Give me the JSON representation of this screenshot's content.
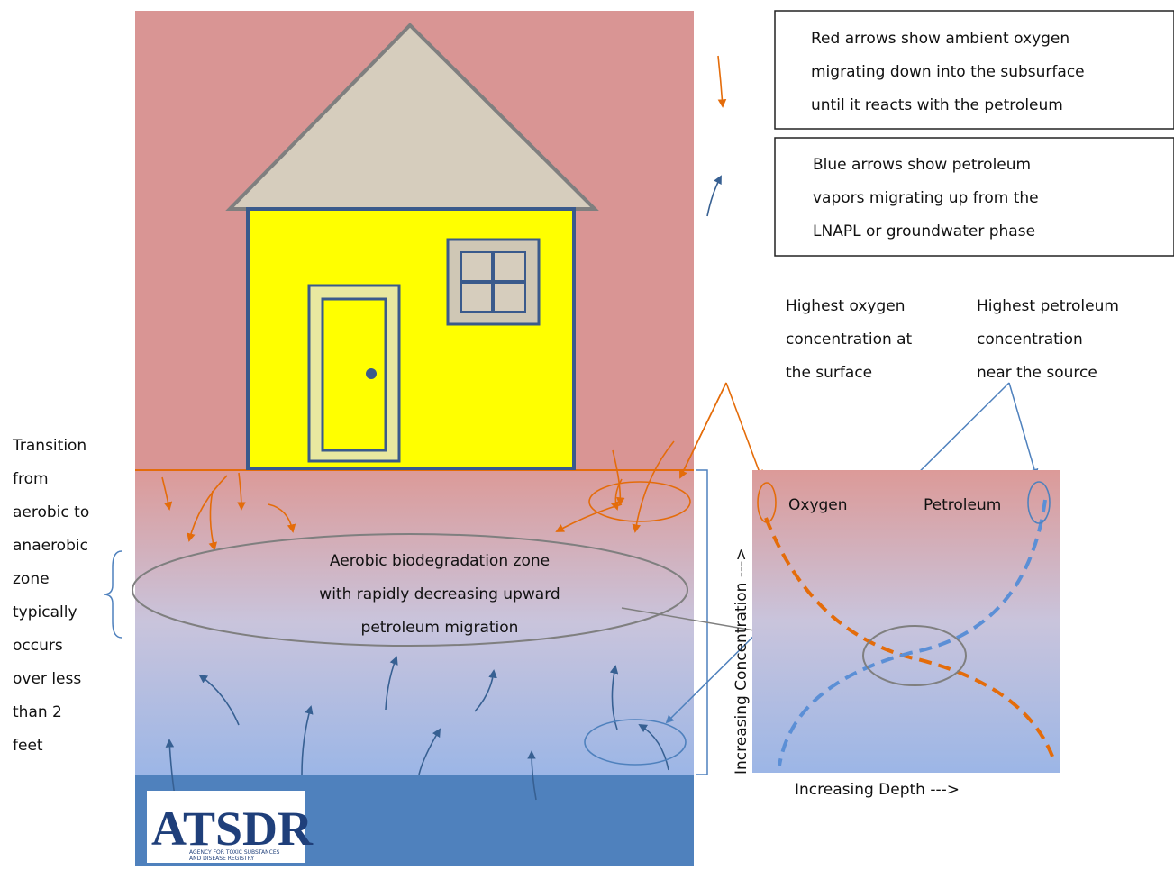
{
  "legend": {
    "red_arrows": [
      "Red arrows show ambient oxygen",
      "migrating down into the subsurface",
      "until it reacts with the petroleum"
    ],
    "blue_arrows": [
      "Blue arrows show petroleum",
      "vapors migrating up from the",
      "LNAPL or groundwater phase"
    ]
  },
  "callouts": {
    "oxygen": [
      "Highest oxygen",
      "concentration at",
      "the surface"
    ],
    "petroleum": [
      "Highest petroleum",
      "concentration",
      "near the source"
    ],
    "transition": [
      "Transition",
      "from",
      "aerobic to",
      "anaerobic",
      "zone",
      "typically",
      "occurs",
      "over less",
      "than 2",
      "feet"
    ],
    "aerobic_zone": [
      "Aerobic biodegradation zone",
      "with rapidly decreasing upward",
      "petroleum migration"
    ]
  },
  "graph": {
    "oxygen_label": "Oxygen",
    "petroleum_label": "Petroleum",
    "y_axis": "Increasing Concentration --->",
    "x_axis": "Increasing Depth --->"
  },
  "logo": {
    "name": "ATSDR",
    "subtitle": [
      "AGENCY FOR TOXIC SUBSTANCES",
      "AND DISEASE REGISTRY"
    ]
  }
}
